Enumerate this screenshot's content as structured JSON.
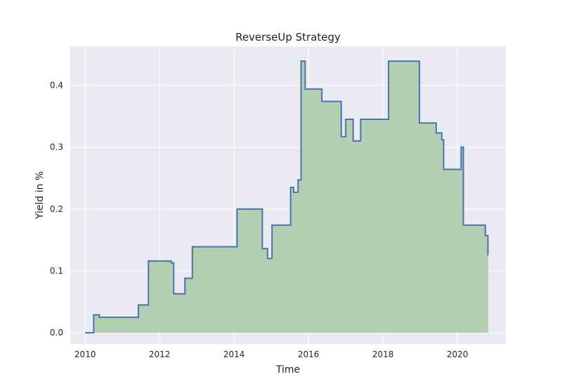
{
  "chart_data": {
    "type": "area",
    "title": "ReverseUp Strategy",
    "xlabel": "Time",
    "ylabel": "Yield in %",
    "xlim": [
      2009.6,
      2021.3
    ],
    "ylim": [
      -0.018,
      0.463
    ],
    "xticks": [
      2010,
      2012,
      2014,
      2016,
      2018,
      2020
    ],
    "yticks": [
      0.0,
      0.1,
      0.2,
      0.3,
      0.4
    ],
    "ytick_labels": [
      "0.0",
      "0.1",
      "0.2",
      "0.3",
      "0.4"
    ],
    "grid": true,
    "step": "post",
    "series": [
      {
        "x": [
          2010.0,
          2010.23,
          2010.38,
          2011.43,
          2011.7,
          2012.31,
          2012.38,
          2012.68,
          2012.88,
          2014.08,
          2014.76,
          2014.9,
          2015.02,
          2015.52,
          2015.6,
          2015.72,
          2015.8,
          2015.91,
          2016.36,
          2016.88,
          2017.0,
          2017.2,
          2017.4,
          2018.15,
          2018.98,
          2019.3,
          2019.43,
          2019.58,
          2019.63,
          2020.1,
          2020.16,
          2020.75,
          2020.82
        ],
        "values": [
          0.0,
          0.029,
          0.025,
          0.045,
          0.116,
          0.113,
          0.063,
          0.088,
          0.139,
          0.2,
          0.136,
          0.12,
          0.174,
          0.235,
          0.227,
          0.247,
          0.439,
          0.394,
          0.374,
          0.317,
          0.345,
          0.31,
          0.345,
          0.439,
          0.339,
          0.339,
          0.323,
          0.312,
          0.264,
          0.3,
          0.174,
          0.157,
          0.126
        ],
        "x_end": 2020.83
      }
    ],
    "colors": {
      "line": "#4c72b0",
      "fill": "#b3cfb2",
      "background": "#eaeaf2",
      "grid": "#ffffff"
    }
  }
}
